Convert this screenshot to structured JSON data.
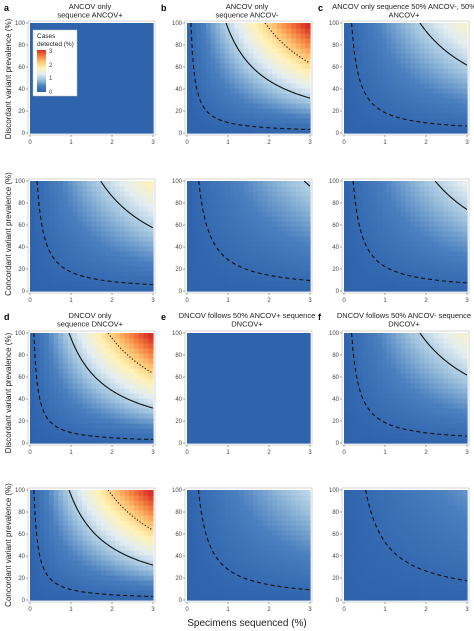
{
  "figure": {
    "x_axis_label": "Specimens sequenced (%)",
    "y_axis_labels": [
      "Discordant variant prevalence (%)",
      "Concordant variant prevalence (%)"
    ],
    "legend": {
      "title": "Cases detected (%)",
      "ticks": [
        "3",
        "2",
        "1",
        "0"
      ],
      "colors": [
        "#2f64ad",
        "#4a7fbf",
        "#9cc1dd",
        "#e3eef3",
        "#fff2b5",
        "#fdc573",
        "#f57c3c",
        "#d73027"
      ]
    },
    "panels": [
      {
        "letter": "a",
        "title": "ANCOV only sequence ANCOV+"
      },
      {
        "letter": "b",
        "title": "ANCOV only sequence ANCOV-"
      },
      {
        "letter": "c",
        "title": "ANCOV only sequence 50% ANCOV-, 50% ANCOV+"
      },
      {
        "letter": "d",
        "title": "DNCOV only sequence DNCOV+"
      },
      {
        "letter": "e",
        "title": "DNCOV follows 50% ANCOV+ sequence DNCOV+"
      },
      {
        "letter": "f",
        "title": "DNCOV follows 50% ANCOV- sequence DNCOV+"
      }
    ]
  },
  "chart_data": [
    {
      "id": "a-discordant",
      "type": "heatmap",
      "title": "ANCOV only sequence ANCOV+",
      "xlabel": "Specimens sequenced (%)",
      "ylabel": "Discordant variant prevalence (%)",
      "xlim": [
        0,
        3
      ],
      "ylim": [
        0,
        100
      ],
      "xticks": [
        0,
        1,
        2,
        3
      ],
      "yticks": [
        0,
        20,
        40,
        60,
        80,
        100
      ],
      "colorscale": [
        0,
        3
      ],
      "k": 0.0,
      "contours": []
    },
    {
      "id": "b-discordant",
      "type": "heatmap",
      "title": "ANCOV only sequence ANCOV-",
      "xlabel": "Specimens sequenced (%)",
      "ylabel": "Discordant variant prevalence (%)",
      "xlim": [
        0,
        3
      ],
      "ylim": [
        0,
        100
      ],
      "xticks": [
        0,
        1,
        2,
        3
      ],
      "yticks": [
        0,
        20,
        40,
        60,
        80,
        100
      ],
      "colorscale": [
        0,
        3
      ],
      "k": 0.0105,
      "contours": [
        {
          "level": 0.1,
          "style": "dashed"
        },
        {
          "level": 1,
          "style": "solid"
        },
        {
          "level": 2,
          "style": "dotted"
        }
      ]
    },
    {
      "id": "c-discordant",
      "type": "heatmap",
      "title": "ANCOV only sequence 50% ANCOV-, 50% ANCOV+",
      "xlabel": "Specimens sequenced (%)",
      "ylabel": "Discordant variant prevalence (%)",
      "xlim": [
        0,
        3
      ],
      "ylim": [
        0,
        100
      ],
      "xticks": [
        0,
        1,
        2,
        3
      ],
      "yticks": [
        0,
        20,
        40,
        60,
        80,
        100
      ],
      "colorscale": [
        0,
        3
      ],
      "k": 0.0054,
      "contours": [
        {
          "level": 0.1,
          "style": "dashed"
        },
        {
          "level": 1,
          "style": "solid"
        }
      ]
    },
    {
      "id": "a-concordant",
      "type": "heatmap",
      "xlabel": "Specimens sequenced (%)",
      "ylabel": "Concordant variant prevalence (%)",
      "xlim": [
        0,
        3
      ],
      "ylim": [
        0,
        100
      ],
      "xticks": [
        0,
        1,
        2,
        3
      ],
      "yticks": [
        0,
        20,
        40,
        60,
        80,
        100
      ],
      "colorscale": [
        0,
        3
      ],
      "k": 0.0058,
      "contours": [
        {
          "level": 0.1,
          "style": "dashed"
        },
        {
          "level": 1,
          "style": "solid"
        }
      ]
    },
    {
      "id": "b-concordant",
      "type": "heatmap",
      "xlabel": "Specimens sequenced (%)",
      "ylabel": "Concordant variant prevalence (%)",
      "xlim": [
        0,
        3
      ],
      "ylim": [
        0,
        100
      ],
      "xticks": [
        0,
        1,
        2,
        3
      ],
      "yticks": [
        0,
        20,
        40,
        60,
        80,
        100
      ],
      "colorscale": [
        0,
        3
      ],
      "k": 0.0035,
      "contours": [
        {
          "level": 0.1,
          "style": "dashed"
        },
        {
          "level": 1,
          "style": "solid"
        }
      ]
    },
    {
      "id": "c-concordant",
      "type": "heatmap",
      "xlabel": "Specimens sequenced (%)",
      "ylabel": "Concordant variant prevalence (%)",
      "xlim": [
        0,
        3
      ],
      "ylim": [
        0,
        100
      ],
      "xticks": [
        0,
        1,
        2,
        3
      ],
      "yticks": [
        0,
        20,
        40,
        60,
        80,
        100
      ],
      "colorscale": [
        0,
        3
      ],
      "k": 0.0045,
      "contours": [
        {
          "level": 0.1,
          "style": "dashed"
        },
        {
          "level": 1,
          "style": "solid"
        }
      ]
    },
    {
      "id": "d-discordant",
      "type": "heatmap",
      "title": "DNCOV only sequence DNCOV+",
      "xlabel": "Specimens sequenced (%)",
      "ylabel": "Discordant variant prevalence (%)",
      "xlim": [
        0,
        3
      ],
      "ylim": [
        0,
        100
      ],
      "xticks": [
        0,
        1,
        2,
        3
      ],
      "yticks": [
        0,
        20,
        40,
        60,
        80,
        100
      ],
      "colorscale": [
        0,
        3
      ],
      "k": 0.0105,
      "contours": [
        {
          "level": 0.1,
          "style": "dashed"
        },
        {
          "level": 1,
          "style": "solid"
        },
        {
          "level": 2,
          "style": "dotted"
        }
      ]
    },
    {
      "id": "e-discordant",
      "type": "heatmap",
      "title": "DNCOV follows 50% ANCOV+ sequence DNCOV+",
      "xlabel": "Specimens sequenced (%)",
      "ylabel": "Discordant variant prevalence (%)",
      "xlim": [
        0,
        3
      ],
      "ylim": [
        0,
        100
      ],
      "xticks": [
        0,
        1,
        2,
        3
      ],
      "yticks": [
        0,
        20,
        40,
        60,
        80,
        100
      ],
      "colorscale": [
        0,
        3
      ],
      "k": 0.0,
      "contours": []
    },
    {
      "id": "f-discordant",
      "type": "heatmap",
      "title": "DNCOV follows 50% ANCOV- sequence DNCOV+",
      "xlabel": "Specimens sequenced (%)",
      "ylabel": "Discordant variant prevalence (%)",
      "xlim": [
        0,
        3
      ],
      "ylim": [
        0,
        100
      ],
      "xticks": [
        0,
        1,
        2,
        3
      ],
      "yticks": [
        0,
        20,
        40,
        60,
        80,
        100
      ],
      "colorscale": [
        0,
        3
      ],
      "k": 0.0054,
      "contours": [
        {
          "level": 0.1,
          "style": "dashed"
        },
        {
          "level": 1,
          "style": "solid"
        }
      ]
    },
    {
      "id": "d-concordant",
      "type": "heatmap",
      "xlabel": "Specimens sequenced (%)",
      "ylabel": "Concordant variant prevalence (%)",
      "xlim": [
        0,
        3
      ],
      "ylim": [
        0,
        100
      ],
      "xticks": [
        0,
        1,
        2,
        3
      ],
      "yticks": [
        0,
        20,
        40,
        60,
        80,
        100
      ],
      "colorscale": [
        0,
        3
      ],
      "k": 0.0105,
      "contours": [
        {
          "level": 0.1,
          "style": "dashed"
        },
        {
          "level": 1,
          "style": "solid"
        },
        {
          "level": 2,
          "style": "dotted"
        }
      ]
    },
    {
      "id": "e-concordant",
      "type": "heatmap",
      "xlabel": "Specimens sequenced (%)",
      "ylabel": "Concordant variant prevalence (%)",
      "xlim": [
        0,
        3
      ],
      "ylim": [
        0,
        100
      ],
      "xticks": [
        0,
        1,
        2,
        3
      ],
      "yticks": [
        0,
        20,
        40,
        60,
        80,
        100
      ],
      "colorscale": [
        0,
        3
      ],
      "k": 0.0036,
      "contours": [
        {
          "level": 0.1,
          "style": "dashed"
        }
      ]
    },
    {
      "id": "f-concordant",
      "type": "heatmap",
      "xlabel": "Specimens sequenced (%)",
      "ylabel": "Concordant variant prevalence (%)",
      "xlim": [
        0,
        3
      ],
      "ylim": [
        0,
        100
      ],
      "xticks": [
        0,
        1,
        2,
        3
      ],
      "yticks": [
        0,
        20,
        40,
        60,
        80,
        100
      ],
      "colorscale": [
        0,
        3
      ],
      "k": 0.0019,
      "contours": [
        {
          "level": 0.1,
          "style": "dashed"
        }
      ]
    }
  ]
}
